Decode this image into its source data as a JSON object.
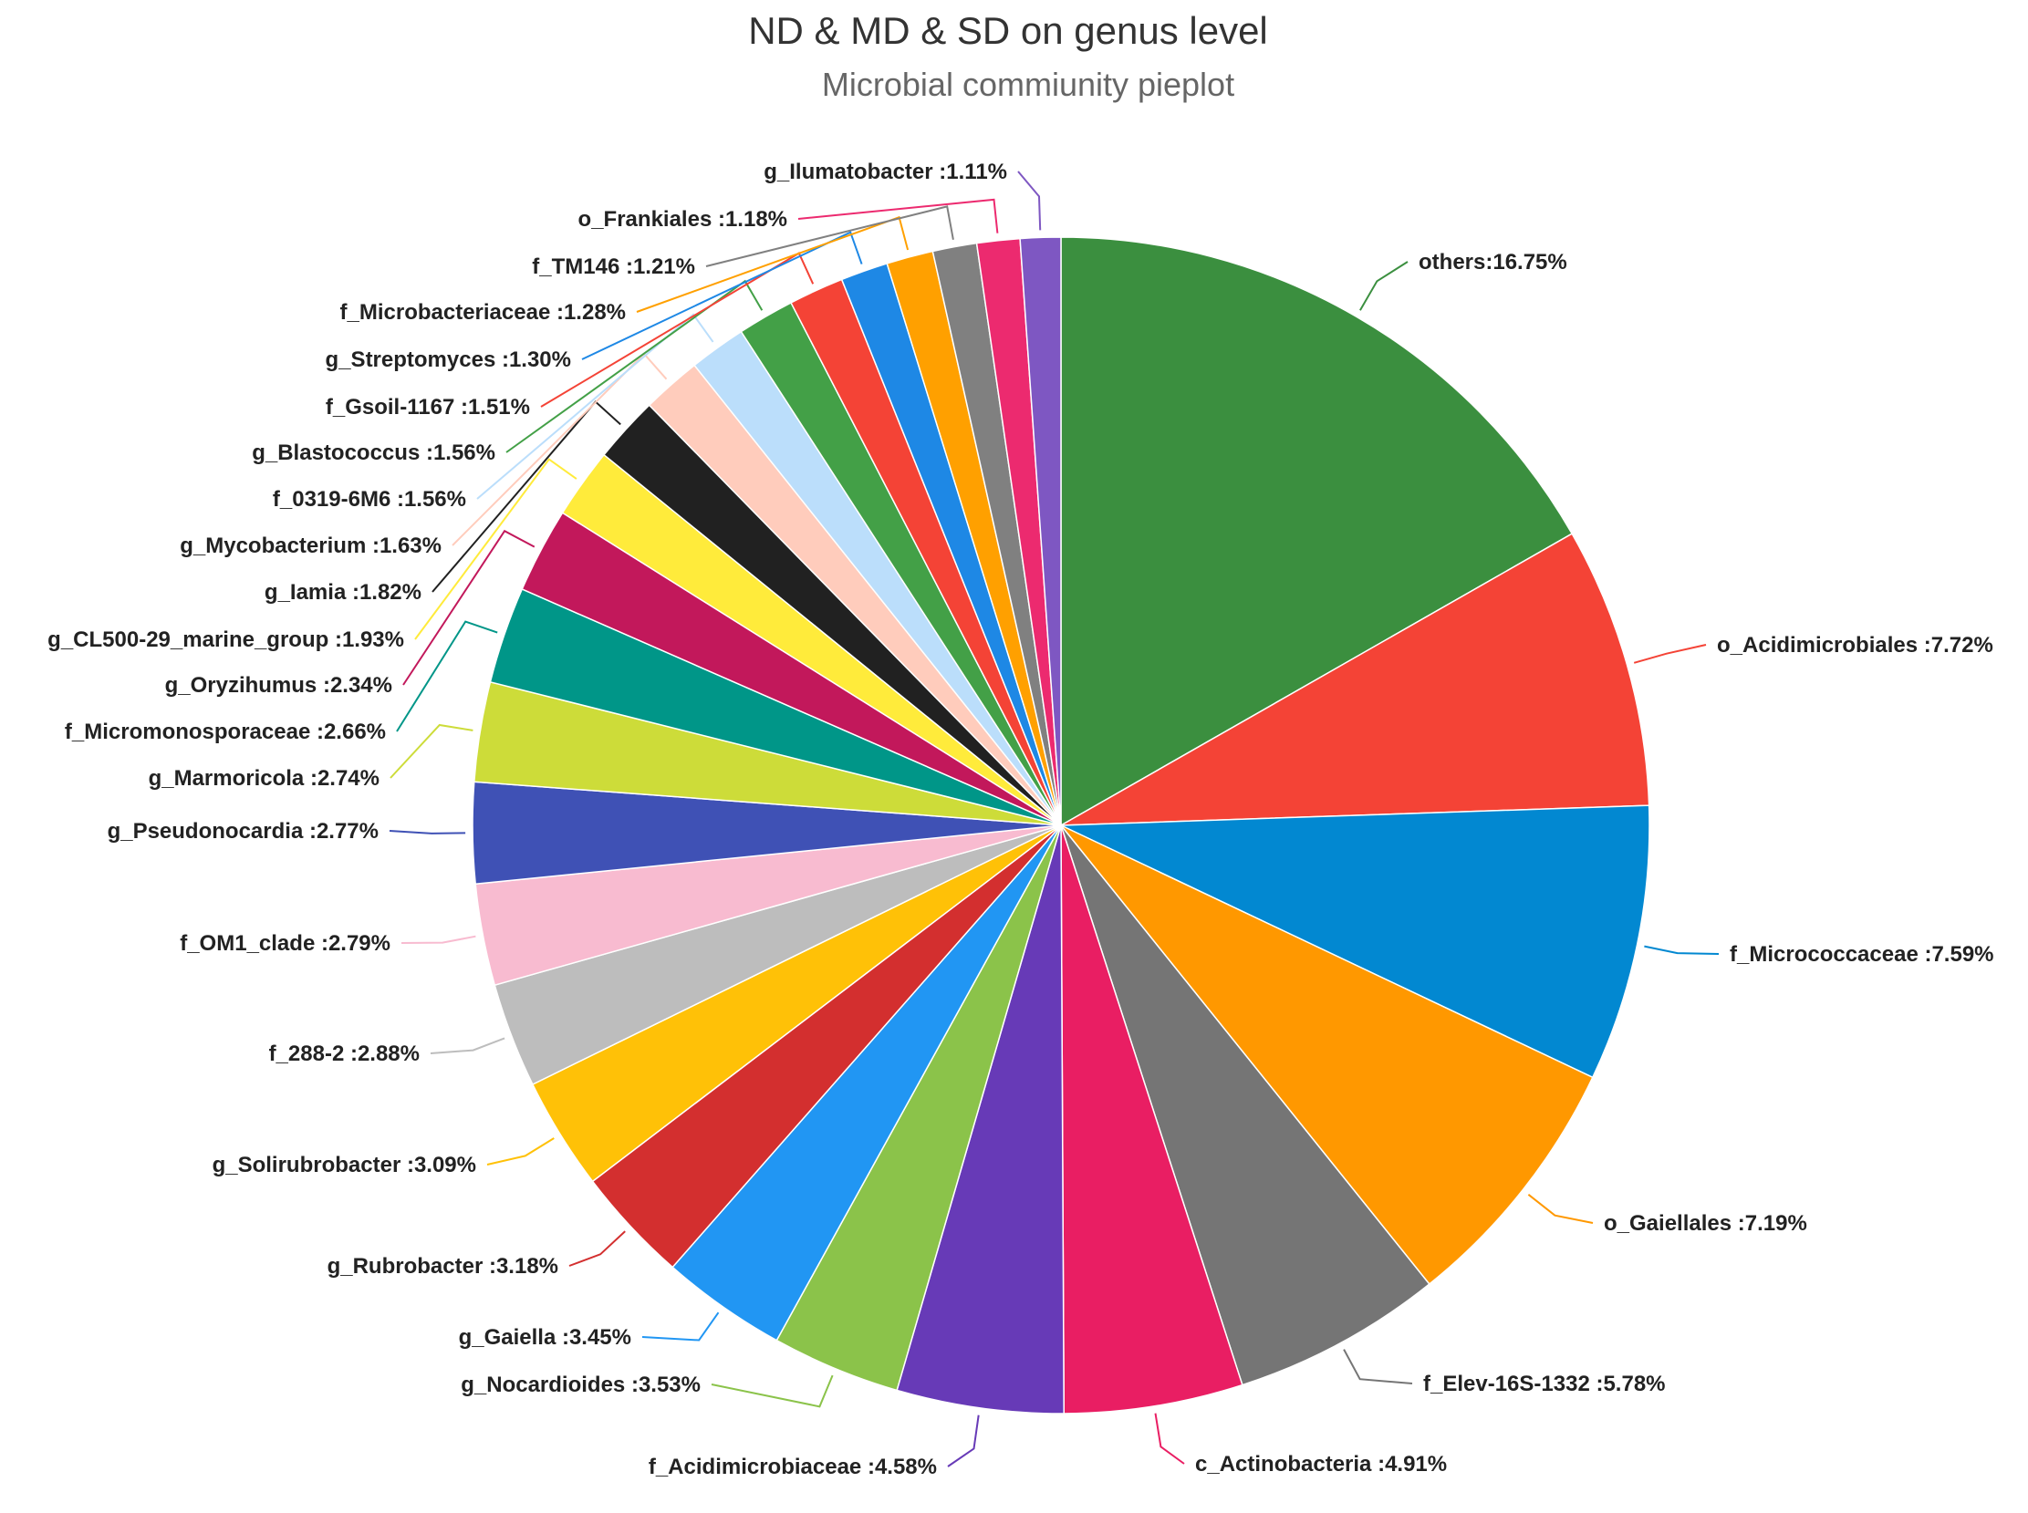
{
  "chart_data": {
    "type": "pie",
    "title": "ND & MD & SD on genus level",
    "subtitle": "Microbial commiunity pieplot",
    "slices": [
      {
        "label": "others",
        "text": "others:16.75%",
        "value": 16.75,
        "color": "#3b8f3f"
      },
      {
        "label": "o_Acidimicrobiales",
        "text": "o_Acidimicrobiales :7.72%",
        "value": 7.72,
        "color": "#f44336"
      },
      {
        "label": "f_Micrococcaceae",
        "text": "f_Micrococcaceae :7.59%",
        "value": 7.59,
        "color": "#0288d1"
      },
      {
        "label": "o_Gaiellales",
        "text": "o_Gaiellales :7.19%",
        "value": 7.19,
        "color": "#ff9800"
      },
      {
        "label": "f_Elev-16S-1332",
        "text": "f_Elev-16S-1332 :5.78%",
        "value": 5.78,
        "color": "#757575"
      },
      {
        "label": "c_Actinobacteria",
        "text": "c_Actinobacteria :4.91%",
        "value": 4.91,
        "color": "#e91e63"
      },
      {
        "label": "f_Acidimicrobiaceae",
        "text": "f_Acidimicrobiaceae :4.58%",
        "value": 4.58,
        "color": "#673ab7"
      },
      {
        "label": "g_Nocardioides",
        "text": "g_Nocardioides :3.53%",
        "value": 3.53,
        "color": "#8bc34a"
      },
      {
        "label": "g_Gaiella",
        "text": "g_Gaiella :3.45%",
        "value": 3.45,
        "color": "#2196f3"
      },
      {
        "label": "g_Rubrobacter",
        "text": "g_Rubrobacter :3.18%",
        "value": 3.18,
        "color": "#d32f2f"
      },
      {
        "label": "g_Solirubrobacter",
        "text": "g_Solirubrobacter :3.09%",
        "value": 3.09,
        "color": "#ffc107"
      },
      {
        "label": "f_288-2",
        "text": "f_288-2 :2.88%",
        "value": 2.88,
        "color": "#bdbdbd"
      },
      {
        "label": "f_OM1_clade",
        "text": "f_OM1_clade :2.79%",
        "value": 2.79,
        "color": "#f8bbd0"
      },
      {
        "label": "g_Pseudonocardia",
        "text": "g_Pseudonocardia :2.77%",
        "value": 2.77,
        "color": "#3f51b5"
      },
      {
        "label": "g_Marmoricola",
        "text": "g_Marmoricola :2.74%",
        "value": 2.74,
        "color": "#cddc39"
      },
      {
        "label": "f_Micromonosporaceae",
        "text": "f_Micromonosporaceae :2.66%",
        "value": 2.66,
        "color": "#009688"
      },
      {
        "label": "g_Oryzihumus",
        "text": "g_Oryzihumus :2.34%",
        "value": 2.34,
        "color": "#c2185b"
      },
      {
        "label": "g_CL500-29_marine_group",
        "text": "g_CL500-29_marine_group :1.93%",
        "value": 1.93,
        "color": "#ffeb3b"
      },
      {
        "label": "g_Iamia",
        "text": "g_Iamia :1.82%",
        "value": 1.82,
        "color": "#212121"
      },
      {
        "label": "g_Mycobacterium",
        "text": "g_Mycobacterium :1.63%",
        "value": 1.63,
        "color": "#ffccbc"
      },
      {
        "label": "f_0319-6M6",
        "text": "f_0319-6M6 :1.56%",
        "value": 1.56,
        "color": "#bbdefb"
      },
      {
        "label": "g_Blastococcus",
        "text": "g_Blastococcus :1.56%",
        "value": 1.56,
        "color": "#43a047"
      },
      {
        "label": "f_Gsoil-1167",
        "text": "f_Gsoil-1167 :1.51%",
        "value": 1.51,
        "color": "#f44336"
      },
      {
        "label": "g_Streptomyces",
        "text": "g_Streptomyces :1.30%",
        "value": 1.3,
        "color": "#1e88e5"
      },
      {
        "label": "f_Microbacteriaceae",
        "text": "f_Microbacteriaceae :1.28%",
        "value": 1.28,
        "color": "#ffa000"
      },
      {
        "label": "f_TM146",
        "text": "f_TM146 :1.21%",
        "value": 1.21,
        "color": "#808080"
      },
      {
        "label": "o_Frankiales",
        "text": "o_Frankiales :1.18%",
        "value": 1.18,
        "color": "#ec2a6f"
      },
      {
        "label": "g_Ilumatobacter",
        "text": "g_Ilumatobacter :1.11%",
        "value": 1.11,
        "color": "#7e57c2"
      }
    ]
  }
}
